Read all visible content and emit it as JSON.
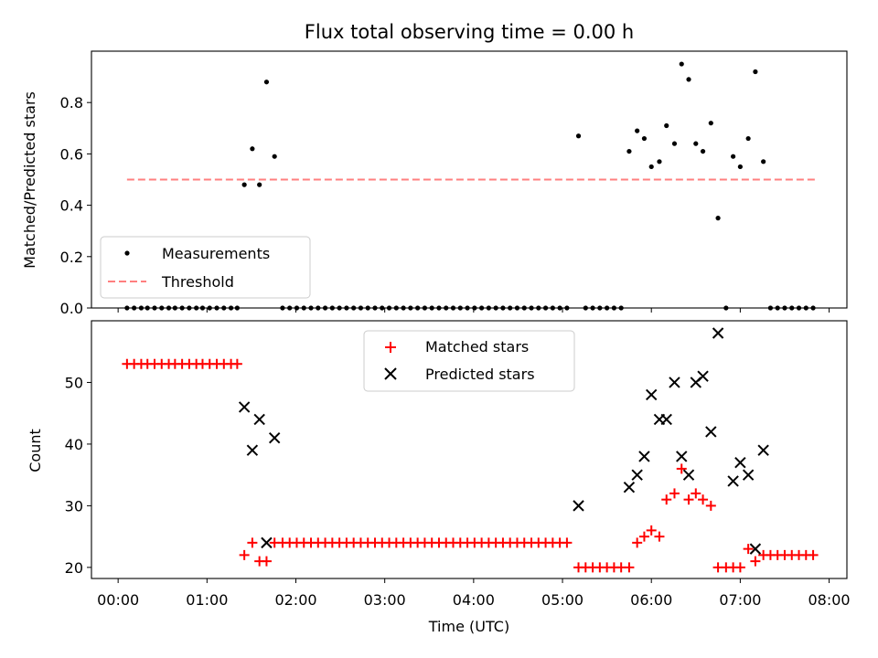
{
  "chart_data": [
    {
      "type": "scatter",
      "title": "Flux total observing time = 0.00 h",
      "ylabel": "Matched/Predicted stars",
      "xlabel": "",
      "xlim": [
        -0.3,
        8.2
      ],
      "ylim": [
        0,
        1.0
      ],
      "yticks": [
        0.0,
        0.2,
        0.4,
        0.6,
        0.8
      ],
      "ytick_labels": [
        "0.0",
        "0.2",
        "0.4",
        "0.6",
        "0.8"
      ],
      "legend": {
        "position": "lower-left",
        "entries": [
          {
            "label": "Measurements",
            "marker": "dot",
            "color": "#000000"
          },
          {
            "label": "Threshold",
            "marker": "dashed-line",
            "color": "#ff7f7f"
          }
        ]
      },
      "threshold": {
        "name": "Threshold",
        "y": 0.5,
        "x_range": [
          0.1,
          7.87
        ],
        "color": "#ff7f7f"
      },
      "series": [
        {
          "name": "Measurements",
          "color": "#000000",
          "points": [
            [
              0.1,
              0
            ],
            [
              0.18,
              0
            ],
            [
              0.26,
              0
            ],
            [
              0.33,
              0
            ],
            [
              0.41,
              0
            ],
            [
              0.49,
              0
            ],
            [
              0.57,
              0
            ],
            [
              0.64,
              0
            ],
            [
              0.72,
              0
            ],
            [
              0.8,
              0
            ],
            [
              0.88,
              0
            ],
            [
              0.95,
              0
            ],
            [
              1.03,
              0
            ],
            [
              1.11,
              0
            ],
            [
              1.19,
              0
            ],
            [
              1.27,
              0
            ],
            [
              1.34,
              0
            ],
            [
              1.42,
              0.48
            ],
            [
              1.51,
              0.62
            ],
            [
              1.59,
              0.48
            ],
            [
              1.67,
              0.88
            ],
            [
              1.76,
              0.59
            ],
            [
              1.85,
              0
            ],
            [
              1.93,
              0
            ],
            [
              2.01,
              0
            ],
            [
              2.09,
              0
            ],
            [
              2.17,
              0
            ],
            [
              2.25,
              0
            ],
            [
              2.33,
              0
            ],
            [
              2.41,
              0
            ],
            [
              2.49,
              0
            ],
            [
              2.57,
              0
            ],
            [
              2.65,
              0
            ],
            [
              2.73,
              0
            ],
            [
              2.81,
              0
            ],
            [
              2.89,
              0
            ],
            [
              2.97,
              0
            ],
            [
              3.05,
              0
            ],
            [
              3.13,
              0
            ],
            [
              3.21,
              0
            ],
            [
              3.29,
              0
            ],
            [
              3.37,
              0
            ],
            [
              3.45,
              0
            ],
            [
              3.53,
              0
            ],
            [
              3.61,
              0
            ],
            [
              3.69,
              0
            ],
            [
              3.77,
              0
            ],
            [
              3.85,
              0
            ],
            [
              3.93,
              0
            ],
            [
              4.01,
              0
            ],
            [
              4.09,
              0
            ],
            [
              4.17,
              0
            ],
            [
              4.25,
              0
            ],
            [
              4.33,
              0
            ],
            [
              4.41,
              0
            ],
            [
              4.49,
              0
            ],
            [
              4.57,
              0
            ],
            [
              4.65,
              0
            ],
            [
              4.73,
              0
            ],
            [
              4.81,
              0
            ],
            [
              4.89,
              0
            ],
            [
              4.97,
              0
            ],
            [
              5.05,
              0
            ],
            [
              5.18,
              0.67
            ],
            [
              5.26,
              0
            ],
            [
              5.34,
              0
            ],
            [
              5.42,
              0
            ],
            [
              5.5,
              0
            ],
            [
              5.58,
              0
            ],
            [
              5.66,
              0
            ],
            [
              5.75,
              0.61
            ],
            [
              5.84,
              0.69
            ],
            [
              5.92,
              0.66
            ],
            [
              6.0,
              0.55
            ],
            [
              6.09,
              0.57
            ],
            [
              6.17,
              0.71
            ],
            [
              6.26,
              0.64
            ],
            [
              6.34,
              0.95
            ],
            [
              6.42,
              0.89
            ],
            [
              6.5,
              0.64
            ],
            [
              6.58,
              0.61
            ],
            [
              6.67,
              0.72
            ],
            [
              6.75,
              0.35
            ],
            [
              6.84,
              0
            ],
            [
              6.92,
              0.59
            ],
            [
              7.0,
              0.55
            ],
            [
              7.09,
              0.66
            ],
            [
              7.17,
              0.92
            ],
            [
              7.26,
              0.57
            ],
            [
              7.34,
              0
            ],
            [
              7.42,
              0
            ],
            [
              7.5,
              0
            ],
            [
              7.58,
              0
            ],
            [
              7.66,
              0
            ],
            [
              7.74,
              0
            ],
            [
              7.82,
              0
            ]
          ]
        }
      ]
    },
    {
      "type": "scatter",
      "title": "",
      "xlabel": "Time (UTC)",
      "ylabel": "Count",
      "xlim": [
        -0.3,
        8.2
      ],
      "ylim": [
        18.2,
        60
      ],
      "xticks": [
        0,
        1,
        2,
        3,
        4,
        5,
        6,
        7,
        8
      ],
      "xtick_labels": [
        "00:00",
        "01:00",
        "02:00",
        "03:00",
        "04:00",
        "05:00",
        "06:00",
        "07:00",
        "08:00"
      ],
      "yticks": [
        20,
        30,
        40,
        50
      ],
      "ytick_labels": [
        "20",
        "30",
        "40",
        "50"
      ],
      "legend": {
        "position": "upper-center",
        "entries": [
          {
            "label": "Matched stars",
            "marker": "plus",
            "color": "#ff0000"
          },
          {
            "label": "Predicted stars",
            "marker": "x",
            "color": "#000000"
          }
        ]
      },
      "series": [
        {
          "name": "Matched stars",
          "marker": "plus",
          "color": "#ff0000",
          "points": [
            [
              0.1,
              53
            ],
            [
              0.18,
              53
            ],
            [
              0.26,
              53
            ],
            [
              0.33,
              53
            ],
            [
              0.41,
              53
            ],
            [
              0.49,
              53
            ],
            [
              0.57,
              53
            ],
            [
              0.64,
              53
            ],
            [
              0.72,
              53
            ],
            [
              0.8,
              53
            ],
            [
              0.88,
              53
            ],
            [
              0.95,
              53
            ],
            [
              1.03,
              53
            ],
            [
              1.11,
              53
            ],
            [
              1.19,
              53
            ],
            [
              1.27,
              53
            ],
            [
              1.34,
              53
            ],
            [
              1.42,
              22
            ],
            [
              1.51,
              24
            ],
            [
              1.59,
              21
            ],
            [
              1.67,
              21
            ],
            [
              1.76,
              24
            ],
            [
              1.85,
              24
            ],
            [
              1.93,
              24
            ],
            [
              2.01,
              24
            ],
            [
              2.09,
              24
            ],
            [
              2.17,
              24
            ],
            [
              2.25,
              24
            ],
            [
              2.33,
              24
            ],
            [
              2.41,
              24
            ],
            [
              2.49,
              24
            ],
            [
              2.57,
              24
            ],
            [
              2.65,
              24
            ],
            [
              2.73,
              24
            ],
            [
              2.81,
              24
            ],
            [
              2.89,
              24
            ],
            [
              2.97,
              24
            ],
            [
              3.05,
              24
            ],
            [
              3.13,
              24
            ],
            [
              3.21,
              24
            ],
            [
              3.29,
              24
            ],
            [
              3.37,
              24
            ],
            [
              3.45,
              24
            ],
            [
              3.53,
              24
            ],
            [
              3.61,
              24
            ],
            [
              3.69,
              24
            ],
            [
              3.77,
              24
            ],
            [
              3.85,
              24
            ],
            [
              3.93,
              24
            ],
            [
              4.01,
              24
            ],
            [
              4.09,
              24
            ],
            [
              4.17,
              24
            ],
            [
              4.25,
              24
            ],
            [
              4.33,
              24
            ],
            [
              4.41,
              24
            ],
            [
              4.49,
              24
            ],
            [
              4.57,
              24
            ],
            [
              4.65,
              24
            ],
            [
              4.73,
              24
            ],
            [
              4.81,
              24
            ],
            [
              4.89,
              24
            ],
            [
              4.97,
              24
            ],
            [
              5.05,
              24
            ],
            [
              5.18,
              20
            ],
            [
              5.26,
              20
            ],
            [
              5.34,
              20
            ],
            [
              5.42,
              20
            ],
            [
              5.5,
              20
            ],
            [
              5.58,
              20
            ],
            [
              5.66,
              20
            ],
            [
              5.75,
              20
            ],
            [
              5.84,
              24
            ],
            [
              5.92,
              25
            ],
            [
              6.0,
              26
            ],
            [
              6.09,
              25
            ],
            [
              6.17,
              31
            ],
            [
              6.26,
              32
            ],
            [
              6.34,
              36
            ],
            [
              6.42,
              31
            ],
            [
              6.5,
              32
            ],
            [
              6.58,
              31
            ],
            [
              6.67,
              30
            ],
            [
              6.75,
              20
            ],
            [
              6.84,
              20
            ],
            [
              6.92,
              20
            ],
            [
              7.0,
              20
            ],
            [
              7.09,
              23
            ],
            [
              7.17,
              21
            ],
            [
              7.26,
              22
            ],
            [
              7.34,
              22
            ],
            [
              7.42,
              22
            ],
            [
              7.5,
              22
            ],
            [
              7.58,
              22
            ],
            [
              7.66,
              22
            ],
            [
              7.74,
              22
            ],
            [
              7.82,
              22
            ]
          ]
        },
        {
          "name": "Predicted stars",
          "marker": "x",
          "color": "#000000",
          "points": [
            [
              1.42,
              46
            ],
            [
              1.51,
              39
            ],
            [
              1.59,
              44
            ],
            [
              1.67,
              24
            ],
            [
              1.76,
              41
            ],
            [
              5.18,
              30
            ],
            [
              5.75,
              33
            ],
            [
              5.84,
              35
            ],
            [
              5.92,
              38
            ],
            [
              6.0,
              48
            ],
            [
              6.09,
              44
            ],
            [
              6.17,
              44
            ],
            [
              6.26,
              50
            ],
            [
              6.34,
              38
            ],
            [
              6.42,
              35
            ],
            [
              6.5,
              50
            ],
            [
              6.58,
              51
            ],
            [
              6.67,
              42
            ],
            [
              6.75,
              58
            ],
            [
              6.92,
              34
            ],
            [
              7.0,
              37
            ],
            [
              7.09,
              35
            ],
            [
              7.17,
              23
            ],
            [
              7.26,
              39
            ]
          ]
        }
      ]
    }
  ]
}
